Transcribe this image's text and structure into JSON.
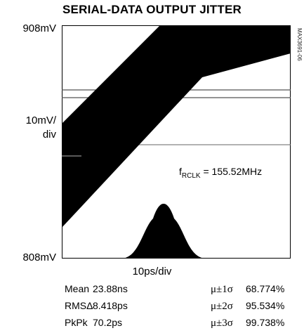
{
  "chart_data": {
    "type": "eye-diagram",
    "title": "SERIAL-DATA OUTPUT JITTER",
    "y_top_label": "908mV",
    "y_scale_label_line1": "10mV/",
    "y_scale_label_line2": "div",
    "y_bottom_label": "808mV",
    "x_scale_label": "10ps/div",
    "part_number": "MAX3691-06",
    "frequency_label": {
      "prefix": "f",
      "subscript": "RCLK",
      "value": " = 155.52MHz"
    },
    "statistics_left": [
      {
        "label": "Mean",
        "value": "23.88ns"
      },
      {
        "label": "RMSΔ",
        "value": "8.418ps"
      },
      {
        "label": "PkPk",
        "value": "70.2ps"
      }
    ],
    "statistics_right": [
      {
        "label": "μ±1σ",
        "value": "68.774%"
      },
      {
        "label": "μ±2σ",
        "value": "95.534%"
      },
      {
        "label": "μ±3σ",
        "value": "99.738%"
      }
    ]
  }
}
